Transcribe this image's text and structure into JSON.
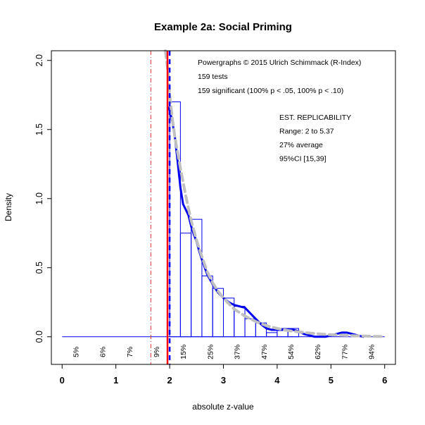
{
  "chart_data": {
    "type": "histogram",
    "title": "Example 2a: Social Priming",
    "xlabel": "absolute z-value",
    "ylabel": "Density",
    "xlim": [
      -0.2,
      6.2
    ],
    "ylim": [
      -0.2,
      2.07
    ],
    "x_ticks": [
      0,
      1,
      2,
      3,
      4,
      5,
      6
    ],
    "y_ticks": [
      0.0,
      0.5,
      1.0,
      1.5,
      2.0
    ],
    "y_tick_labels": [
      "0.0",
      "0.5",
      "1.0",
      "1.5",
      "2.0"
    ],
    "grid": false,
    "annotations": [
      "Powergraphs © 2015 Ulrich Schimmack (R-Index)",
      "159 tests",
      "159 significant (100% p < .05, 100% p < .10)"
    ],
    "replicability": [
      "EST. REPLICABILITY",
      "Range: 2 to 5.37",
      "27% average",
      "95%CI [15,39]"
    ],
    "power_labels": [
      "5%",
      "6%",
      "7%",
      "9%",
      "15%",
      "25%",
      "37%",
      "47%",
      "54%",
      "62%",
      "77%",
      "94%"
    ],
    "power_label_x": [
      0.25,
      0.75,
      1.25,
      1.75,
      2.25,
      2.75,
      3.25,
      3.75,
      4.25,
      4.75,
      5.25,
      5.75
    ],
    "histogram": {
      "bin_width": 0.2,
      "bins": [
        {
          "x0": 0.0,
          "x1": 2.0,
          "density": 0.0
        },
        {
          "x0": 2.0,
          "x1": 2.2,
          "density": 1.7
        },
        {
          "x0": 2.2,
          "x1": 2.4,
          "density": 0.75
        },
        {
          "x0": 2.4,
          "x1": 2.6,
          "density": 0.85
        },
        {
          "x0": 2.6,
          "x1": 2.8,
          "density": 0.44
        },
        {
          "x0": 2.8,
          "x1": 3.0,
          "density": 0.35
        },
        {
          "x0": 3.0,
          "x1": 3.2,
          "density": 0.28
        },
        {
          "x0": 3.2,
          "x1": 3.4,
          "density": 0.22
        },
        {
          "x0": 3.4,
          "x1": 3.6,
          "density": 0.13
        },
        {
          "x0": 3.6,
          "x1": 3.8,
          "density": 0.1
        },
        {
          "x0": 3.8,
          "x1": 4.0,
          "density": 0.03
        },
        {
          "x0": 4.0,
          "x1": 4.2,
          "density": 0.06
        },
        {
          "x0": 4.2,
          "x1": 4.4,
          "density": 0.06
        },
        {
          "x0": 4.4,
          "x1": 4.6,
          "density": 0.0
        },
        {
          "x0": 4.6,
          "x1": 4.8,
          "density": 0.0
        },
        {
          "x0": 4.8,
          "x1": 5.0,
          "density": 0.0
        },
        {
          "x0": 5.0,
          "x1": 5.2,
          "density": 0.0
        },
        {
          "x0": 5.2,
          "x1": 5.4,
          "density": 0.0
        },
        {
          "x0": 5.4,
          "x1": 5.6,
          "density": 0.0
        },
        {
          "x0": 5.6,
          "x1": 6.0,
          "density": 0.0
        }
      ]
    },
    "series": [
      {
        "style": "blue solid kernel density",
        "color": "#0000ee",
        "x": [
          1.97,
          2.0,
          2.05,
          2.1,
          2.15,
          2.2,
          2.25,
          2.3,
          2.35,
          2.4,
          2.45,
          2.5,
          2.55,
          2.6,
          2.7,
          2.8,
          2.9,
          3.0,
          3.1,
          3.2,
          3.3,
          3.4,
          3.5,
          3.6,
          3.7,
          3.8,
          3.9,
          4.0,
          4.1,
          4.2,
          4.3,
          4.4,
          4.5,
          4.6,
          4.7,
          4.8,
          4.9,
          5.0,
          5.1,
          5.2,
          5.3,
          5.4,
          5.5,
          5.6
        ],
        "y": [
          1.66,
          1.64,
          1.56,
          1.44,
          1.26,
          1.08,
          0.96,
          0.92,
          0.88,
          0.8,
          0.74,
          0.69,
          0.62,
          0.56,
          0.45,
          0.38,
          0.32,
          0.28,
          0.25,
          0.23,
          0.22,
          0.21,
          0.17,
          0.13,
          0.09,
          0.06,
          0.05,
          0.05,
          0.05,
          0.05,
          0.05,
          0.04,
          0.02,
          0.01,
          0.0,
          0.0,
          0.0,
          0.01,
          0.02,
          0.03,
          0.03,
          0.02,
          0.01,
          0.0
        ]
      },
      {
        "style": "grey dashed fitted curve",
        "color": "#c0c0c0",
        "x": [
          1.92,
          1.95,
          1.98,
          2.0,
          2.05,
          2.1,
          2.2,
          2.3,
          2.4,
          2.5,
          2.6,
          2.7,
          2.8,
          2.9,
          3.0,
          3.2,
          3.4,
          3.6,
          3.8,
          4.0,
          4.2,
          4.4,
          4.6,
          4.8,
          5.0,
          5.2,
          5.4,
          5.6,
          5.8,
          5.95
        ],
        "y": [
          2.07,
          1.98,
          1.88,
          1.75,
          1.58,
          1.44,
          1.22,
          1.02,
          0.84,
          0.7,
          0.58,
          0.47,
          0.39,
          0.33,
          0.28,
          0.2,
          0.15,
          0.11,
          0.08,
          0.06,
          0.045,
          0.035,
          0.027,
          0.02,
          0.015,
          0.011,
          0.008,
          0.005,
          0.003,
          0.002
        ]
      }
    ],
    "reference_lines": [
      {
        "x": 1.65,
        "color": "#e03030",
        "style": "dash-dot"
      },
      {
        "x": 1.96,
        "color": "#ff0000",
        "style": "solid"
      },
      {
        "x": 2.0,
        "color": "#0000ff",
        "style": "dashed"
      }
    ],
    "colors": {
      "histogram": "#0000ee",
      "kernel": "#0000ee",
      "fit": "#c0c0c0",
      "significance": "#ff0000",
      "cutoff": "#0000ff"
    }
  }
}
